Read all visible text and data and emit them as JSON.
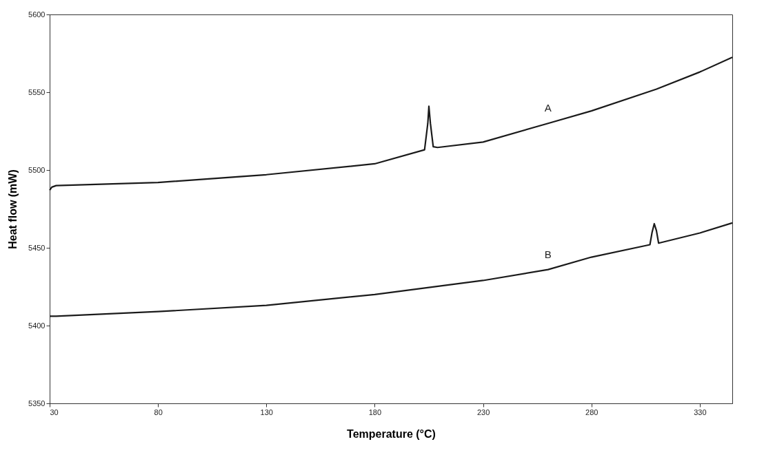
{
  "chart_data": {
    "type": "line",
    "xlabel": "Temperature (°C)",
    "ylabel": "Heat flow (mW)",
    "xlim": [
      30,
      345
    ],
    "xticks": [
      30,
      80,
      130,
      180,
      230,
      280,
      330
    ],
    "ylim": [
      5350,
      5600
    ],
    "yticks": [
      5350,
      5400,
      5450,
      5500,
      5550,
      5600
    ],
    "grid": false,
    "legend": false,
    "marker": "none",
    "line_style": "solid",
    "series": [
      {
        "name": "A",
        "color": "#1a1a1a",
        "x": [
          30,
          31,
          33,
          80,
          130,
          180,
          203,
          204.5,
          205,
          205.7,
          207,
          209,
          230,
          260,
          280,
          310,
          330,
          345
        ],
        "values": [
          5487,
          5489,
          5490,
          5492,
          5497,
          5504,
          5513,
          5530,
          5541,
          5530,
          5515,
          5514.5,
          5518,
          5530,
          5538,
          5552,
          5563,
          5572.5
        ]
      },
      {
        "name": "B",
        "color": "#1a1a1a",
        "x": [
          30,
          33,
          80,
          130,
          180,
          230,
          260,
          280,
          307,
          308,
          309,
          310,
          311,
          330,
          345
        ],
        "values": [
          5406,
          5406,
          5409,
          5413,
          5420,
          5429,
          5436,
          5444,
          5452,
          5460,
          5465.5,
          5461,
          5453,
          5459.5,
          5466
        ]
      }
    ]
  }
}
